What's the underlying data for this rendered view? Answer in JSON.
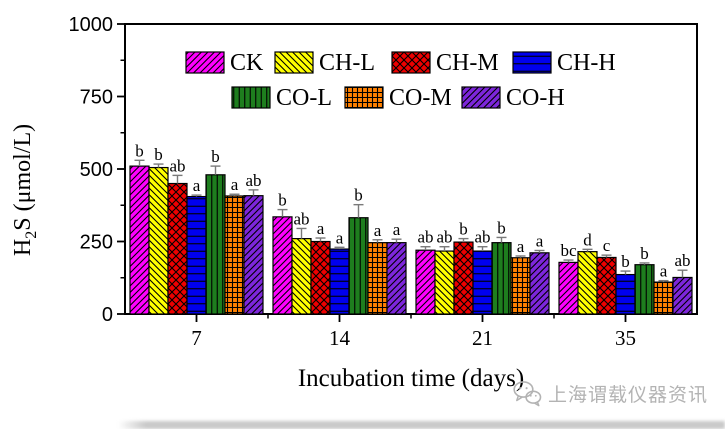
{
  "watermark": {
    "text": "上海谓载仪器资讯",
    "icon": "wechat-icon",
    "color": "#b3b3b3"
  },
  "chart_data": {
    "type": "bar",
    "title": "",
    "xlabel": "Incubation time (days)",
    "ylabel": "H2S (μmol/L)",
    "ylabel_parts": {
      "base": "H",
      "sub": "2",
      "rest": "S (μmol/L)"
    },
    "categories": [
      "7",
      "14",
      "21",
      "35"
    ],
    "ylim": [
      0,
      1000
    ],
    "yticks": [
      "0",
      "250",
      "500",
      "750",
      "1000"
    ],
    "y_minor_ticks": [
      125,
      375,
      625,
      875
    ],
    "grid": false,
    "legend_position": "top-center",
    "legend_rows": [
      [
        "CK",
        "CH-L",
        "CH-M",
        "CH-H"
      ],
      [
        "CO-L",
        "CO-M",
        "CO-H"
      ]
    ],
    "error_bar_color": "#7a7a7a",
    "series": [
      {
        "name": "CK",
        "color": "#FF00FF",
        "hatch": "diagonal-forward",
        "values": [
          510,
          335,
          220,
          178
        ],
        "errors": [
          20,
          25,
          12,
          8
        ],
        "letters": [
          "b",
          "b",
          "ab",
          "bc"
        ]
      },
      {
        "name": "CH-L",
        "color": "#FFFF00",
        "hatch": "diagonal-back",
        "values": [
          505,
          260,
          217,
          215
        ],
        "errors": [
          12,
          35,
          15,
          8
        ],
        "letters": [
          "b",
          "ab",
          "ab",
          "d"
        ]
      },
      {
        "name": "CH-M",
        "color": "#EE0000",
        "hatch": "cross-diagonal",
        "values": [
          450,
          250,
          248,
          195
        ],
        "errors": [
          28,
          12,
          12,
          8
        ],
        "letters": [
          "ab",
          "a",
          "b",
          "c"
        ]
      },
      {
        "name": "CH-H",
        "color": "#0000EE",
        "hatch": "horizontal",
        "values": [
          405,
          224,
          217,
          136
        ],
        "errors": [
          5,
          6,
          15,
          12
        ],
        "letters": [
          "a",
          "a",
          "ab",
          "b"
        ]
      },
      {
        "name": "CO-L",
        "color": "#1E7E1E",
        "hatch": "vertical",
        "values": [
          480,
          332,
          246,
          170
        ],
        "errors": [
          30,
          45,
          18,
          6
        ],
        "letters": [
          "b",
          "b",
          "b",
          "b"
        ]
      },
      {
        "name": "CO-M",
        "color": "#FF8000",
        "hatch": "grid",
        "values": [
          407,
          246,
          194,
          110
        ],
        "errors": [
          6,
          10,
          6,
          5
        ],
        "letters": [
          "a",
          "a",
          "a",
          "a"
        ]
      },
      {
        "name": "CO-H",
        "color": "#7D26DB",
        "hatch": "diagonal-forward",
        "values": [
          408,
          246,
          211,
          126
        ],
        "errors": [
          20,
          12,
          8,
          25
        ],
        "letters": [
          "ab",
          "a",
          "a",
          "ab"
        ]
      }
    ]
  }
}
